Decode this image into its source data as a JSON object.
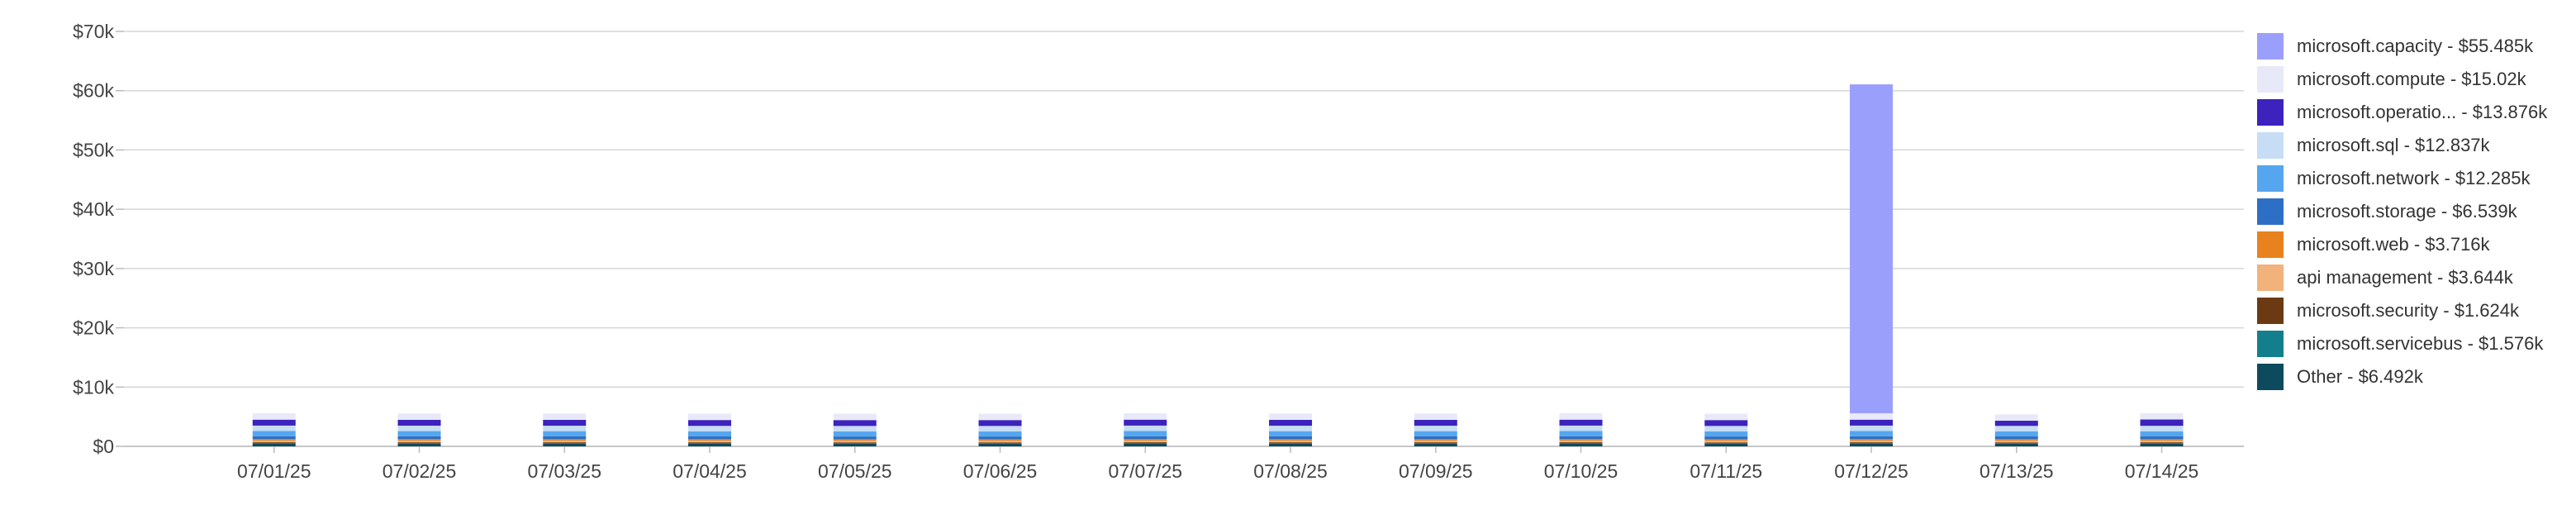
{
  "chart_data": {
    "type": "bar",
    "stacked": true,
    "categories": [
      "07/01/25",
      "07/02/25",
      "07/03/25",
      "07/04/25",
      "07/05/25",
      "07/06/25",
      "07/07/25",
      "07/08/25",
      "07/09/25",
      "07/10/25",
      "07/11/25",
      "07/12/25",
      "07/13/25",
      "07/14/25"
    ],
    "y_ticks": [
      "$0",
      "$10k",
      "$20k",
      "$30k",
      "$40k",
      "$50k",
      "$60k",
      "$70k"
    ],
    "ylim": [
      0,
      70000
    ],
    "grid": true,
    "legend_position": "right",
    "series": [
      {
        "name": "Other",
        "label": "Other - $6.492k",
        "color": "#0d4a5e",
        "values": [
          470,
          460,
          460,
          470,
          460,
          460,
          470,
          460,
          460,
          470,
          460,
          470,
          460,
          460
        ]
      },
      {
        "name": "microsoft.servicebus",
        "label": "microsoft.servicebus - $1.576k",
        "color": "#137f8c",
        "values": [
          110,
          110,
          110,
          110,
          110,
          110,
          110,
          110,
          110,
          110,
          110,
          120,
          110,
          110
        ]
      },
      {
        "name": "microsoft.security",
        "label": "microsoft.security - $1.624k",
        "color": "#6b3a13",
        "values": [
          120,
          120,
          120,
          110,
          110,
          110,
          120,
          120,
          120,
          120,
          110,
          120,
          110,
          120
        ]
      },
      {
        "name": "api management",
        "label": "api management - $3.644k",
        "color": "#f2b27c",
        "values": [
          260,
          260,
          260,
          260,
          260,
          260,
          260,
          260,
          260,
          260,
          260,
          260,
          260,
          264
        ]
      },
      {
        "name": "microsoft.web",
        "label": "microsoft.web - $3.716k",
        "color": "#e8821e",
        "values": [
          270,
          270,
          260,
          260,
          260,
          260,
          270,
          260,
          260,
          270,
          260,
          260,
          270,
          256
        ]
      },
      {
        "name": "microsoft.storage",
        "label": "microsoft.storage - $6.539k",
        "color": "#2c6fc4",
        "values": [
          470,
          470,
          470,
          460,
          460,
          460,
          470,
          470,
          470,
          470,
          460,
          470,
          460,
          459
        ]
      },
      {
        "name": "microsoft.network",
        "label": "microsoft.network - $12.285k",
        "color": "#56a6ef",
        "values": [
          880,
          880,
          880,
          870,
          870,
          870,
          880,
          880,
          880,
          880,
          870,
          880,
          870,
          875
        ]
      },
      {
        "name": "microsoft.sql",
        "label": "microsoft.sql - $12.837k",
        "color": "#c6ddf5",
        "values": [
          920,
          920,
          920,
          910,
          910,
          910,
          920,
          920,
          920,
          920,
          910,
          920,
          910,
          917
        ]
      },
      {
        "name": "microsoft.operatio...",
        "label": "microsoft.operatio... - $13.876k",
        "color": "#3d22bd",
        "values": [
          1000,
          990,
          990,
          990,
          990,
          990,
          1000,
          990,
          990,
          1000,
          990,
          1000,
          880,
          1067
        ]
      },
      {
        "name": "microsoft.compute",
        "label": "microsoft.compute - $15.02k",
        "color": "#e8e9f8",
        "values": [
          1080,
          1070,
          1070,
          1070,
          1070,
          1070,
          1080,
          1070,
          1070,
          1080,
          1070,
          1080,
          1070,
          1080
        ]
      },
      {
        "name": "microsoft.capacity",
        "label": "microsoft.capacity - $55.485k",
        "color": "#9b9ffc",
        "values": [
          0,
          0,
          0,
          0,
          0,
          0,
          0,
          0,
          0,
          0,
          0,
          55485,
          0,
          0
        ]
      }
    ],
    "legend_order": [
      "microsoft.capacity",
      "microsoft.compute",
      "microsoft.operatio...",
      "microsoft.sql",
      "microsoft.network",
      "microsoft.storage",
      "microsoft.web",
      "api management",
      "microsoft.security",
      "microsoft.servicebus",
      "Other"
    ]
  }
}
